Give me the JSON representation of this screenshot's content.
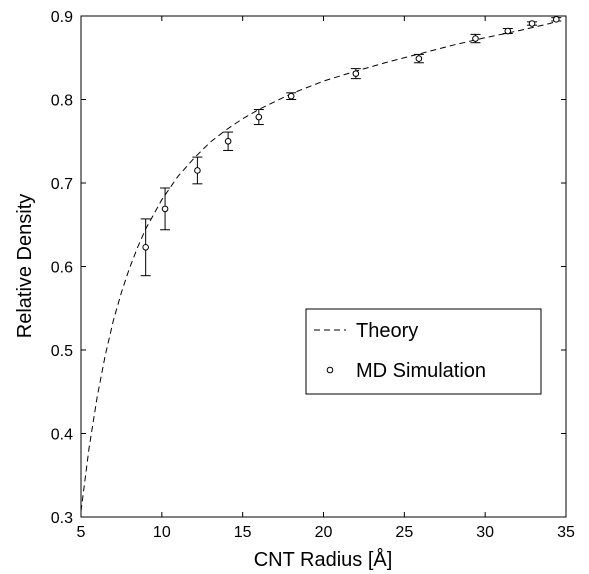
{
  "chart_data": {
    "type": "line",
    "title": "",
    "xlabel": "CNT Radius [Å]",
    "ylabel": "Relative Density",
    "xlim": [
      5,
      35
    ],
    "ylim": [
      0.3,
      0.9
    ],
    "xticks": [
      5,
      10,
      15,
      20,
      25,
      30,
      35
    ],
    "yticks": [
      0.3,
      0.4,
      0.5,
      0.6,
      0.7,
      0.8,
      0.9
    ],
    "xtick_labels": [
      "5",
      "10",
      "15",
      "20",
      "25",
      "30",
      "35"
    ],
    "ytick_labels": [
      "0.3",
      "0.4",
      "0.5",
      "0.6",
      "0.7",
      "0.8",
      "0.9"
    ],
    "grid": false,
    "legend_position": "center-right",
    "series": [
      {
        "name": "Theory",
        "style": "dashed-line",
        "x": [
          5.0,
          5.5,
          6.0,
          6.5,
          7.0,
          7.5,
          8.0,
          8.5,
          9.0,
          10.0,
          11.0,
          12.0,
          13.0,
          14.0,
          15.0,
          16.0,
          18.0,
          20.0,
          22.0,
          24.0,
          26.0,
          28.0,
          30.0,
          32.0,
          34.0,
          34.5
        ],
        "y": [
          0.307,
          0.383,
          0.444,
          0.494,
          0.535,
          0.569,
          0.598,
          0.623,
          0.645,
          0.68,
          0.708,
          0.73,
          0.749,
          0.764,
          0.777,
          0.788,
          0.807,
          0.822,
          0.834,
          0.845,
          0.855,
          0.865,
          0.874,
          0.882,
          0.891,
          0.894
        ]
      },
      {
        "name": "MD Simulation",
        "style": "markers-open-circle",
        "x": [
          9.0,
          10.2,
          12.2,
          14.1,
          16.0,
          18.0,
          22.0,
          25.9,
          29.4,
          31.4,
          32.9,
          34.4
        ],
        "y": [
          0.623,
          0.669,
          0.715,
          0.75,
          0.779,
          0.804,
          0.831,
          0.849,
          0.873,
          0.882,
          0.891,
          0.896
        ],
        "error": [
          0.034,
          0.025,
          0.016,
          0.011,
          0.009,
          0.004,
          0.006,
          0.005,
          0.005,
          0.003,
          0.002,
          0.002
        ]
      }
    ]
  }
}
